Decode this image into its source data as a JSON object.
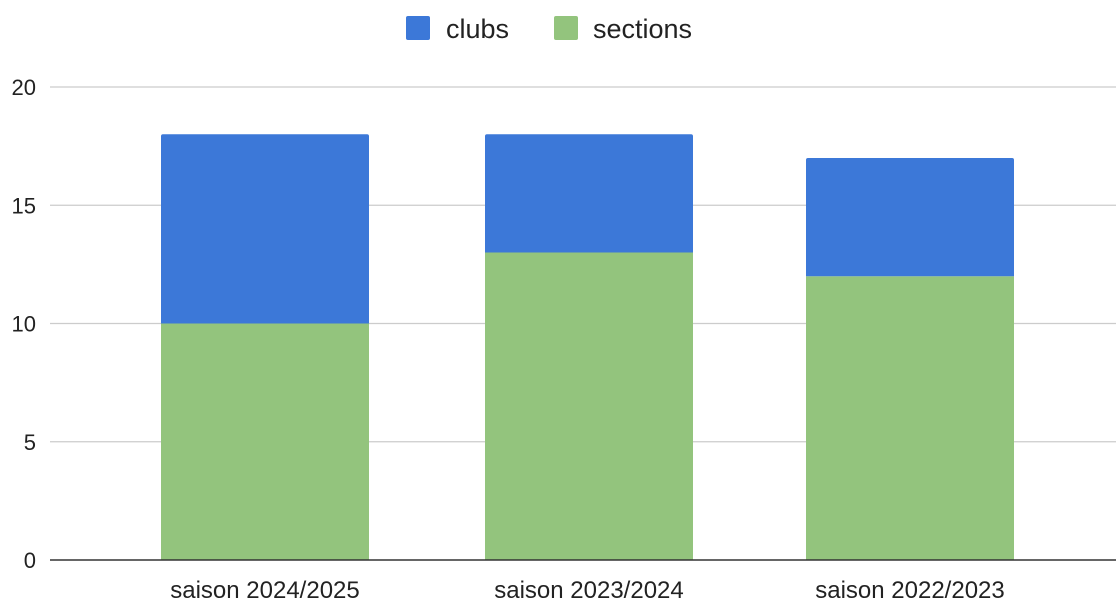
{
  "chart_data": {
    "type": "bar",
    "stacked": true,
    "categories": [
      "saison 2024/2025",
      "saison 2023/2024",
      "saison 2022/2023"
    ],
    "series": [
      {
        "name": "sections",
        "values": [
          10,
          13,
          12
        ],
        "color": "#93c47d"
      },
      {
        "name": "clubs",
        "values": [
          8,
          5,
          5
        ],
        "color": "#3c78d8"
      }
    ],
    "legend_order": [
      "clubs",
      "sections"
    ],
    "legend_position": "top-center",
    "ylim": [
      0,
      20
    ],
    "yticks": [
      "0",
      "5",
      "10",
      "15",
      "20"
    ],
    "grid": true,
    "title": "",
    "xlabel": "",
    "ylabel": ""
  }
}
